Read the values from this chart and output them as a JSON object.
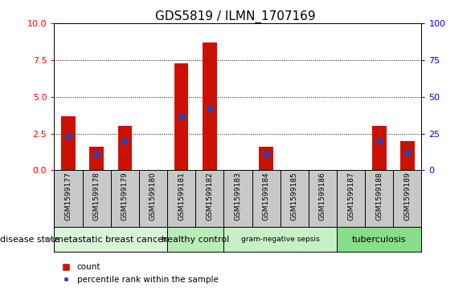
{
  "title": "GDS5819 / ILMN_1707169",
  "samples": [
    "GSM1599177",
    "GSM1599178",
    "GSM1599179",
    "GSM1599180",
    "GSM1599181",
    "GSM1599182",
    "GSM1599183",
    "GSM1599184",
    "GSM1599185",
    "GSM1599186",
    "GSM1599187",
    "GSM1599188",
    "GSM1599189"
  ],
  "count_values": [
    3.7,
    1.6,
    3.0,
    0.0,
    7.3,
    8.7,
    0.0,
    1.6,
    0.0,
    0.0,
    0.0,
    3.0,
    2.0
  ],
  "percentile_values": [
    23,
    11,
    20,
    0,
    37,
    42,
    0,
    11,
    0,
    0,
    0,
    20,
    12
  ],
  "disease_groups": [
    {
      "label": "metastatic breast cancer",
      "start": 0,
      "end": 4,
      "color": "#d8f5d8"
    },
    {
      "label": "healthy control",
      "start": 4,
      "end": 6,
      "color": "#b8edb8"
    },
    {
      "label": "gram-negative sepsis",
      "start": 6,
      "end": 10,
      "color": "#c8f0c8"
    },
    {
      "label": "tuberculosis",
      "start": 10,
      "end": 13,
      "color": "#88dd88"
    }
  ],
  "ylim_left": [
    0,
    10
  ],
  "ylim_right": [
    0,
    100
  ],
  "yticks_left": [
    0,
    2.5,
    5.0,
    7.5,
    10
  ],
  "yticks_right": [
    0,
    25,
    50,
    75,
    100
  ],
  "bar_width": 0.5,
  "count_color": "#cc1100",
  "percentile_color": "#2244bb",
  "label_bg": "#c8c8c8",
  "disease_state_label": "disease state",
  "legend_count": "count",
  "legend_pct": "percentile rank within the sample"
}
